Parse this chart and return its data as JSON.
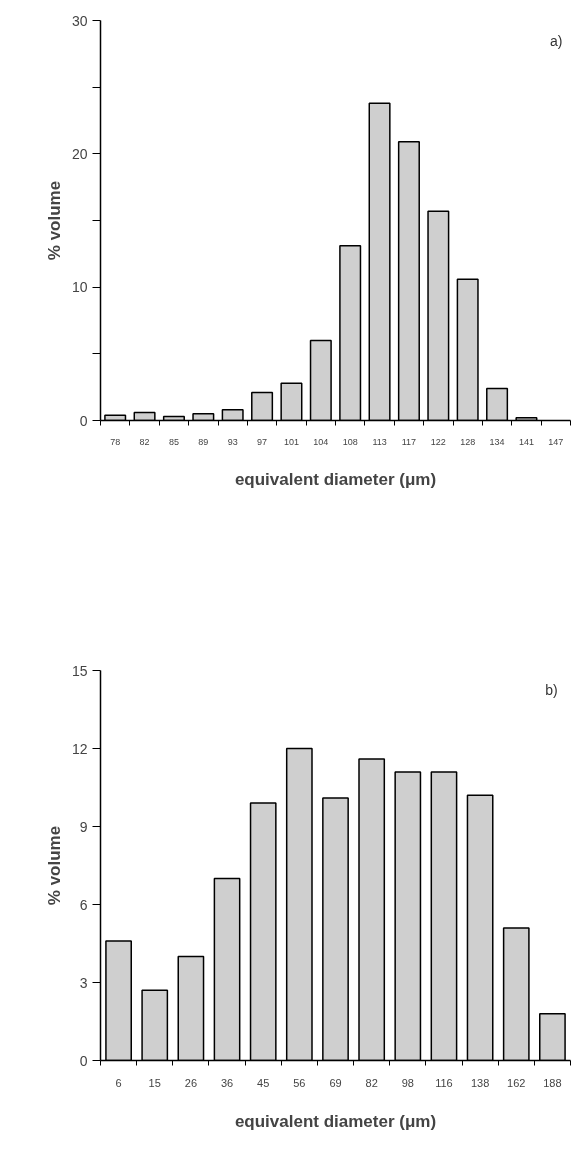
{
  "chart_data": [
    {
      "type": "bar",
      "xlabel": "equivalent diameter (μm)",
      "ylabel": "% volume",
      "annotations": [
        "a)"
      ],
      "categories": [
        "78",
        "82",
        "85",
        "89",
        "93",
        "97",
        "101",
        "104",
        "108",
        "113",
        "117",
        "122",
        "128",
        "134",
        "141",
        "147"
      ],
      "values": [
        0.4,
        0.6,
        0.3,
        0.5,
        0.8,
        2.1,
        2.8,
        6.0,
        13.1,
        23.8,
        20.9,
        15.7,
        10.6,
        2.4,
        0.2,
        null
      ],
      "color": "#cfcfcf",
      "ylim": [
        0,
        30
      ],
      "yticks": [
        0,
        {
          "value": 5,
          "label": null
        },
        10,
        {
          "value": 15,
          "label": null
        },
        20,
        {
          "value": 25,
          "label": null
        },
        30
      ],
      "grid": false
    },
    {
      "type": "bar",
      "xlabel": "equivalent diameter (μm)",
      "ylabel": "% volume",
      "annotations": [
        "b)"
      ],
      "categories": [
        "6",
        "15",
        "26",
        "36",
        "45",
        "56",
        "69",
        "82",
        "98",
        "116",
        "138",
        "162",
        "188"
      ],
      "values": [
        4.6,
        2.7,
        4.0,
        7.0,
        9.9,
        12.0,
        10.1,
        11.6,
        11.1,
        11.1,
        10.2,
        5.1,
        1.8
      ],
      "color": "#cfcfcf",
      "ylim": [
        0,
        15
      ],
      "yticks": [
        0,
        3,
        6,
        9,
        12,
        15
      ],
      "grid": false
    }
  ]
}
